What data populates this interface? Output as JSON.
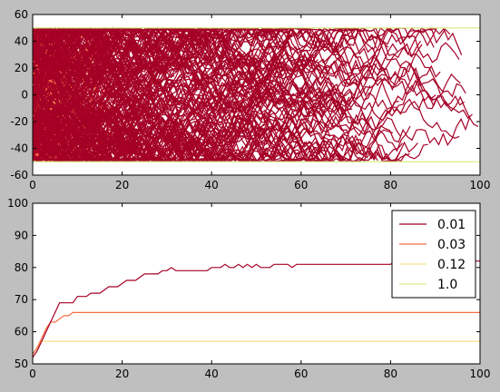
{
  "chart_data": [
    {
      "type": "line",
      "title": "",
      "xlabel": "",
      "ylabel": "",
      "xlim": [
        0,
        100
      ],
      "ylim": [
        -60,
        60
      ],
      "x_ticks": [
        "0",
        "20",
        "40",
        "60",
        "80",
        "100"
      ],
      "y_ticks": [
        "-60",
        "-40",
        "-20",
        "0",
        "20",
        "40",
        "60"
      ],
      "grid": false,
      "bounds": [
        -50,
        50
      ],
      "series": [
        {
          "color": "#a50026",
          "walk_count": 220,
          "walk_step": 10,
          "x_spread": [
            15,
            100
          ]
        },
        {
          "color": "#f46d43",
          "walk_count": 110,
          "walk_step": 28,
          "x_spread": [
            5,
            18
          ]
        },
        {
          "color": "#fee08b",
          "walk_count": 60,
          "walk_step": 45,
          "x_spread": [
            2,
            7
          ]
        },
        {
          "color": "#d9ef8b",
          "walk_count": 40,
          "walk_step": 70,
          "x_spread": [
            0.5,
            3
          ]
        }
      ]
    },
    {
      "type": "line",
      "title": "",
      "xlabel": "",
      "ylabel": "",
      "xlim": [
        0,
        100
      ],
      "ylim": [
        50,
        100
      ],
      "x_ticks": [
        "0",
        "20",
        "40",
        "60",
        "80",
        "100"
      ],
      "y_ticks": [
        "50",
        "60",
        "70",
        "80",
        "90",
        "100"
      ],
      "grid": false,
      "legend": "upper right",
      "series": [
        {
          "name": "0.01",
          "color": "#a50026",
          "points": [
            [
              0,
              52
            ],
            [
              1,
              54
            ],
            [
              2,
              57
            ],
            [
              3,
              60
            ],
            [
              4,
              63
            ],
            [
              5,
              66
            ],
            [
              6,
              69
            ],
            [
              7,
              69
            ],
            [
              8,
              69
            ],
            [
              9,
              69
            ],
            [
              10,
              71
            ],
            [
              11,
              71
            ],
            [
              12,
              71
            ],
            [
              13,
              72
            ],
            [
              14,
              72
            ],
            [
              15,
              72
            ],
            [
              16,
              73
            ],
            [
              17,
              74
            ],
            [
              18,
              74
            ],
            [
              19,
              74
            ],
            [
              20,
              75
            ],
            [
              21,
              76
            ],
            [
              22,
              76
            ],
            [
              23,
              76
            ],
            [
              24,
              77
            ],
            [
              25,
              78
            ],
            [
              26,
              78
            ],
            [
              27,
              78
            ],
            [
              28,
              78
            ],
            [
              29,
              79
            ],
            [
              30,
              79
            ],
            [
              31,
              80
            ],
            [
              32,
              79
            ],
            [
              33,
              79
            ],
            [
              34,
              79
            ],
            [
              35,
              79
            ],
            [
              36,
              79
            ],
            [
              37,
              79
            ],
            [
              38,
              79
            ],
            [
              39,
              79
            ],
            [
              40,
              80
            ],
            [
              41,
              80
            ],
            [
              42,
              80
            ],
            [
              43,
              81
            ],
            [
              44,
              80
            ],
            [
              45,
              80
            ],
            [
              46,
              81
            ],
            [
              47,
              80
            ],
            [
              48,
              81
            ],
            [
              49,
              80
            ],
            [
              50,
              81
            ],
            [
              51,
              80
            ],
            [
              52,
              80
            ],
            [
              53,
              80
            ],
            [
              54,
              81
            ],
            [
              55,
              81
            ],
            [
              56,
              81
            ],
            [
              57,
              81
            ],
            [
              58,
              80
            ],
            [
              59,
              81
            ],
            [
              60,
              81
            ],
            [
              61,
              81
            ],
            [
              62,
              81
            ],
            [
              63,
              81
            ],
            [
              64,
              81
            ],
            [
              65,
              81
            ],
            [
              66,
              81
            ],
            [
              67,
              81
            ],
            [
              68,
              81
            ],
            [
              69,
              81
            ],
            [
              70,
              81
            ],
            [
              71,
              81
            ],
            [
              72,
              81
            ],
            [
              73,
              81
            ],
            [
              74,
              81
            ],
            [
              75,
              81
            ],
            [
              76,
              81
            ],
            [
              77,
              81
            ],
            [
              78,
              81
            ],
            [
              79,
              81
            ],
            [
              80,
              81
            ],
            [
              81,
              82
            ],
            [
              82,
              81
            ],
            [
              83,
              82
            ],
            [
              84,
              82
            ],
            [
              85,
              82
            ],
            [
              86,
              82
            ],
            [
              87,
              82
            ],
            [
              88,
              82
            ],
            [
              89,
              82
            ],
            [
              90,
              82
            ],
            [
              91,
              82
            ],
            [
              92,
              82
            ],
            [
              93,
              82
            ],
            [
              94,
              82
            ],
            [
              95,
              82
            ],
            [
              96,
              82
            ],
            [
              97,
              82
            ],
            [
              98,
              82
            ],
            [
              99,
              82
            ],
            [
              100,
              82
            ]
          ]
        },
        {
          "name": "0.03",
          "color": "#f46d43",
          "points": [
            [
              0,
              53
            ],
            [
              1,
              55
            ],
            [
              2,
              58
            ],
            [
              3,
              61
            ],
            [
              4,
              63
            ],
            [
              5,
              63
            ],
            [
              6,
              64
            ],
            [
              7,
              65
            ],
            [
              8,
              65
            ],
            [
              9,
              66
            ],
            [
              10,
              66
            ],
            [
              100,
              66
            ]
          ]
        },
        {
          "name": "0.12",
          "color": "#fee08b",
          "points": [
            [
              0,
              53
            ],
            [
              1,
              55
            ],
            [
              2,
              57
            ],
            [
              3,
              57
            ],
            [
              100,
              57
            ]
          ]
        },
        {
          "name": "1.0",
          "color": "#d9ef8b",
          "points": [
            [
              0,
              53
            ],
            [
              1,
              55
            ],
            [
              2,
              57
            ],
            [
              3,
              57
            ],
            [
              100,
              57
            ]
          ]
        }
      ]
    }
  ]
}
